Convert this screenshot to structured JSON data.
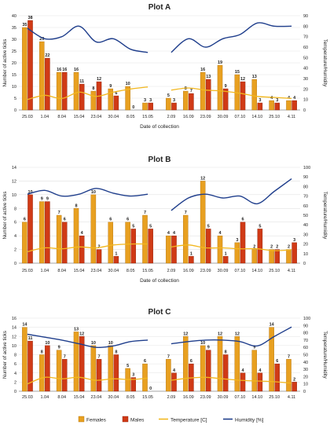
{
  "legend": {
    "females": "Females",
    "males": "Males",
    "temperature": "Temperature [C]",
    "humidity": "Humidity [%]"
  },
  "colors": {
    "females": "#E8A020",
    "females_edge": "#B07010",
    "males": "#D03A16",
    "males_edge": "#8A2008",
    "temperature": "#F2B71E",
    "humidity": "#1F3E8C",
    "grid": "#E2E2E2",
    "axis": "#8C8C8C",
    "text": "#222222"
  },
  "chart_data": [
    {
      "type": "bar",
      "title": "Plot A",
      "xlabel": "Date of collection",
      "ylabel": "Number of active ticks",
      "ylabel_right": "Temperature/Humidity",
      "ylim": [
        0,
        40
      ],
      "yticks": [
        "0",
        "5",
        "10",
        "15",
        "20",
        "25",
        "30",
        "35",
        "40"
      ],
      "ylim_right": [
        0,
        90
      ],
      "yticks_right": [
        "0",
        "10",
        "20",
        "30",
        "40",
        "50",
        "60",
        "70",
        "80",
        "90"
      ],
      "grid": true,
      "groups": [
        {
          "categories": [
            "25.03",
            "1.04",
            "8.04",
            "15.04",
            "23.04",
            "30.04",
            "8.05",
            "15.05"
          ],
          "series": [
            {
              "name": "Females",
              "values": [
                35,
                29,
                16,
                16,
                8,
                9,
                10,
                3
              ]
            },
            {
              "name": "Males",
              "values": [
                38,
                22,
                16,
                11,
                12,
                6,
                0,
                3
              ]
            },
            {
              "name": "Temperature [C]",
              "values": [
                10,
                14,
                11,
                17,
                13,
                17,
                20,
                22
              ]
            },
            {
              "name": "Humidity [%]",
              "values": [
                78,
                68,
                70,
                80,
                65,
                68,
                58,
                55
              ]
            }
          ]
        },
        {
          "categories": [
            "2.09",
            "16.09",
            "23.09",
            "30.09",
            "07.10",
            "14.10",
            "25.10",
            "4.11"
          ],
          "series": [
            {
              "name": "Females",
              "values": [
                5,
                8,
                16,
                19,
                15,
                13,
                4,
                4
              ]
            },
            {
              "name": "Males",
              "values": [
                3,
                7,
                13,
                9,
                12,
                3,
                3,
                4
              ]
            },
            {
              "name": "Temperature [C]",
              "values": [
                19,
                21,
                19,
                18,
                16,
                13,
                12,
                11
              ]
            },
            {
              "name": "Humidity [%]",
              "values": [
                55,
                68,
                60,
                68,
                72,
                83,
                80,
                80
              ]
            }
          ]
        }
      ]
    },
    {
      "type": "bar",
      "title": "Plot B",
      "xlabel": "Date of collection",
      "ylabel": "Number of active ticks",
      "ylabel_right": "Temperature/Humidity",
      "ylim": [
        0,
        14
      ],
      "yticks": [
        "0",
        "2",
        "4",
        "6",
        "8",
        "10",
        "12",
        "14"
      ],
      "ylim_right": [
        0,
        100
      ],
      "yticks_right": [
        "0",
        "10",
        "20",
        "30",
        "40",
        "50",
        "60",
        "70",
        "80",
        "90",
        "100"
      ],
      "grid": true,
      "groups": [
        {
          "categories": [
            "25.03",
            "1.04",
            "8.04",
            "15.04",
            "23.04",
            "30.04",
            "8.05",
            "15.05"
          ],
          "series": [
            {
              "name": "Females",
              "values": [
                6,
                9,
                7,
                8,
                10,
                6,
                6,
                7
              ]
            },
            {
              "name": "Males",
              "values": [
                10,
                9,
                6,
                4,
                2,
                1,
                5,
                5
              ]
            },
            {
              "name": "Temperature [C]",
              "values": [
                12,
                16,
                15,
                17,
                16,
                19,
                20,
                20
              ]
            },
            {
              "name": "Humidity [%]",
              "values": [
                72,
                76,
                70,
                72,
                78,
                73,
                70,
                72
              ]
            }
          ]
        },
        {
          "categories": [
            "2.09",
            "16.09",
            "23.09",
            "30.09",
            "07.10",
            "14.10",
            "25.10",
            "4.11"
          ],
          "series": [
            {
              "name": "Females",
              "values": [
                4,
                7,
                12,
                4,
                3,
                2,
                2,
                2
              ]
            },
            {
              "name": "Males",
              "values": [
                4,
                1,
                5,
                1,
                6,
                5,
                2,
                3
              ]
            },
            {
              "name": "Temperature [C]",
              "values": [
                17,
                19,
                16,
                16,
                15,
                15,
                13,
                14
              ]
            },
            {
              "name": "Humidity [%]",
              "values": [
                55,
                68,
                72,
                68,
                70,
                62,
                75,
                88
              ]
            }
          ]
        }
      ]
    },
    {
      "type": "bar",
      "title": "Plot C",
      "xlabel": "",
      "ylabel": "Number of active ticks",
      "ylabel_right": "Temperature/Humidity",
      "ylim": [
        0,
        16
      ],
      "yticks": [
        "0",
        "2",
        "4",
        "6",
        "8",
        "10",
        "12",
        "14",
        "16"
      ],
      "ylim_right": [
        0,
        100
      ],
      "yticks_right": [
        "0",
        "10",
        "20",
        "30",
        "40",
        "50",
        "60",
        "70",
        "80",
        "90",
        "100"
      ],
      "grid": true,
      "groups": [
        {
          "categories": [
            "25.03",
            "1.04",
            "8.04",
            "15.04",
            "23.04",
            "30.04",
            "8.05",
            "15.05"
          ],
          "series": [
            {
              "name": "Females",
              "values": [
                14,
                8,
                9,
                13,
                10,
                10,
                5,
                6
              ]
            },
            {
              "name": "Males",
              "values": [
                11,
                10,
                7,
                12,
                7,
                8,
                3,
                0
              ]
            },
            {
              "name": "Temperature [C]",
              "values": [
                10,
                19,
                17,
                19,
                15,
                17,
                16,
                18
              ]
            },
            {
              "name": "Humidity [%]",
              "values": [
                78,
                74,
                70,
                65,
                60,
                62,
                68,
                70
              ]
            }
          ]
        },
        {
          "categories": [
            "2.09",
            "16.09",
            "23.09",
            "30.09",
            "07.10",
            "14.10",
            "25.10",
            "4.11"
          ],
          "series": [
            {
              "name": "Females",
              "values": [
                7,
                12,
                10,
                12,
                12,
                9,
                14,
                7
              ]
            },
            {
              "name": "Males",
              "values": [
                4,
                6,
                9,
                8,
                4,
                4,
                6,
                2
              ]
            },
            {
              "name": "Temperature [C]",
              "values": [
                15,
                18,
                19,
                17,
                15,
                14,
                13,
                11
              ]
            },
            {
              "name": "Humidity [%]",
              "values": [
                65,
                68,
                70,
                70,
                68,
                62,
                75,
                88
              ]
            }
          ]
        }
      ]
    }
  ]
}
